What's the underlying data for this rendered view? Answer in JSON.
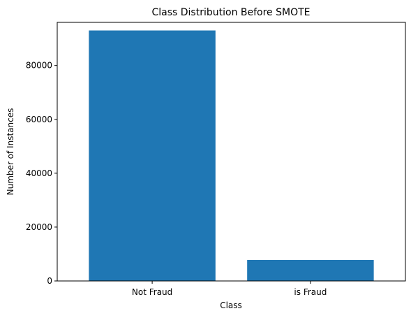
{
  "chart_data": {
    "type": "bar",
    "title": "Class Distribution Before SMOTE",
    "xlabel": "Class",
    "ylabel": "Number of Instances",
    "categories": [
      "Not Fraud",
      "is Fraud"
    ],
    "values": [
      93000,
      7800
    ],
    "ylim": [
      0,
      96000
    ],
    "yticks": [
      0,
      20000,
      40000,
      60000,
      80000
    ],
    "ytick_labels": [
      "0",
      "20000",
      "40000",
      "60000",
      "80000"
    ],
    "bar_color": "#1f77b4",
    "grid": false,
    "legend": "none"
  }
}
